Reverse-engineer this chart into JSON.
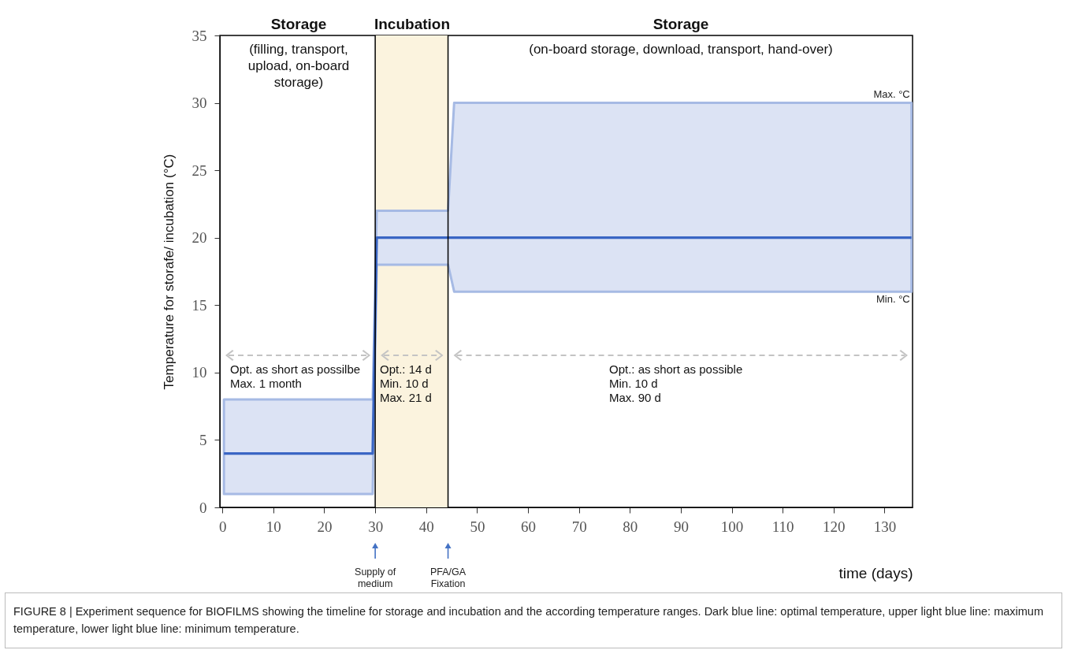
{
  "chart_data": {
    "type": "line",
    "xlabel": "time (days)",
    "ylabel": "Temperature for  storafe/ incubation (°C)",
    "series": [
      {
        "color": "#3a66c4",
        "x": [
          0.3,
          29.5,
          30.3,
          44.3,
          45.5,
          135.3
        ],
        "values": [
          4,
          4,
          20,
          20,
          20,
          20
        ],
        "lower": [
          1,
          1,
          18,
          18,
          16,
          16
        ],
        "upper": [
          8,
          8,
          22,
          22,
          30,
          30
        ]
      }
    ],
    "xlim": [
      -0.5,
      135.5
    ],
    "xticks": [
      0,
      10,
      20,
      30,
      40,
      50,
      60,
      70,
      80,
      90,
      100,
      110,
      120,
      130
    ],
    "ylim": [
      0,
      35
    ],
    "yticks": [
      0,
      5,
      10,
      15,
      20,
      25,
      30,
      35
    ],
    "grid": false,
    "marker": "none",
    "line_style": "solid",
    "bands": [
      {
        "axis": "x",
        "from": 30,
        "to": 44.3,
        "color": "#fbf3de"
      }
    ],
    "ref_lines": [
      {
        "axis": "x",
        "value": 30,
        "color": "#000000"
      },
      {
        "axis": "x",
        "value": 44.3,
        "color": "#000000"
      }
    ],
    "annotations": [
      "Storage",
      "Incubation",
      "Storage",
      "(filling, transport,\nupload, on-board\nstorage)",
      "(on-board storage, download, transport, hand-over)",
      "Opt. as short as possilbe\nMax. 1 month",
      "Opt.: 14 d\nMin. 10 d\nMax. 21 d",
      "Opt.: as short as possible\nMin. 10 d\nMax. 90 d",
      "Supply of\nmedium",
      "PFA/GA\nFixation",
      "FIGURE 8 | Experiment sequence for BIOFILMS showing the timeline for storage and incubation and the according temperature ranges. Dark blue line: optimal temperature, upper light blue line: maximum temperature, lower light blue line: minimum temperature.",
      {
        "text": "Max. °C",
        "x": 135,
        "y": 30
      },
      {
        "text": "Min. °C",
        "x": 135,
        "y": 16
      }
    ]
  }
}
